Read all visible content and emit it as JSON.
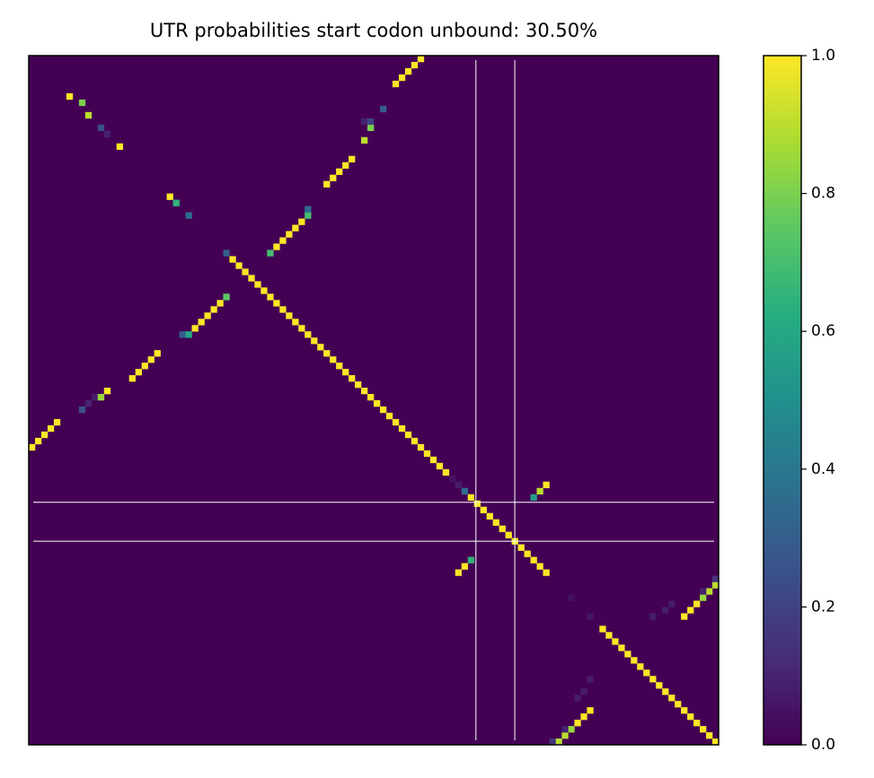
{
  "chart_data": {
    "type": "heatmap",
    "title": "UTR probabilities start codon unbound: 30.50%",
    "colormap": "viridis",
    "xlim": [
      0,
      110
    ],
    "ylim": [
      110,
      0
    ],
    "clim": [
      0,
      1
    ],
    "colorbar_ticks": [
      {
        "value": 0,
        "label": "0.0"
      },
      {
        "value": 0.2,
        "label": "0.2"
      },
      {
        "value": 0.4,
        "label": "0.4"
      },
      {
        "value": 0.6,
        "label": "0.6"
      },
      {
        "value": 0.8,
        "label": "0.8"
      },
      {
        "value": 1,
        "label": "1.0"
      }
    ],
    "marker_positions": [
      71.3,
      77.5
    ],
    "marker_color": "#ffffff",
    "cells": [
      [
        6,
        6,
        1
      ],
      [
        7,
        8,
        0.8
      ],
      [
        9,
        9,
        0.9
      ],
      [
        11,
        11,
        0.25
      ],
      [
        12,
        12,
        0.1
      ],
      [
        14,
        14,
        1
      ],
      [
        22,
        22,
        1
      ],
      [
        23,
        23,
        0.65
      ],
      [
        25,
        25,
        0.35
      ],
      [
        62,
        0,
        1
      ],
      [
        61,
        1,
        1
      ],
      [
        60,
        2,
        1
      ],
      [
        59,
        3,
        1
      ],
      [
        58,
        4,
        1
      ],
      [
        56,
        8,
        0.25
      ],
      [
        55,
        9,
        0.1
      ],
      [
        54,
        10,
        0.08
      ],
      [
        54,
        11,
        0.85
      ],
      [
        53,
        12,
        1
      ],
      [
        51,
        16,
        1
      ],
      [
        50,
        17,
        1
      ],
      [
        49,
        18,
        1
      ],
      [
        48,
        19,
        1
      ],
      [
        47,
        20,
        1
      ],
      [
        44,
        24,
        0.3
      ],
      [
        44,
        25,
        0.6
      ],
      [
        43,
        26,
        1
      ],
      [
        42,
        27,
        1
      ],
      [
        41,
        28,
        1
      ],
      [
        40,
        29,
        1
      ],
      [
        39,
        30,
        1
      ],
      [
        38,
        31,
        0.75
      ],
      [
        31,
        38,
        0.7
      ],
      [
        30,
        39,
        1
      ],
      [
        29,
        40,
        1
      ],
      [
        28,
        41,
        1
      ],
      [
        27,
        42,
        1
      ],
      [
        26,
        43,
        1
      ],
      [
        25,
        44,
        0.7
      ],
      [
        24,
        44,
        0.35
      ],
      [
        20,
        47,
        1
      ],
      [
        19,
        48,
        1
      ],
      [
        18,
        49,
        1
      ],
      [
        17,
        50,
        1
      ],
      [
        16,
        51,
        1
      ],
      [
        13,
        53,
        0.9
      ],
      [
        11,
        54,
        0.8
      ],
      [
        10,
        53,
        0.1
      ],
      [
        10,
        54,
        0.2
      ],
      [
        8,
        56,
        0.3
      ],
      [
        4,
        58,
        1
      ],
      [
        3,
        59,
        1
      ],
      [
        2,
        60,
        1
      ],
      [
        1,
        61,
        1
      ],
      [
        0,
        62,
        1
      ],
      [
        31,
        31,
        0.3
      ],
      [
        32,
        32,
        1
      ],
      [
        33,
        33,
        1
      ],
      [
        34,
        34,
        1
      ],
      [
        35,
        35,
        1
      ],
      [
        36,
        36,
        1
      ],
      [
        37,
        37,
        1
      ],
      [
        38,
        38,
        1
      ],
      [
        39,
        39,
        1
      ],
      [
        40,
        40,
        1
      ],
      [
        41,
        41,
        1
      ],
      [
        42,
        42,
        1
      ],
      [
        43,
        43,
        1
      ],
      [
        44,
        44,
        1
      ],
      [
        45,
        45,
        1
      ],
      [
        46,
        46,
        1
      ],
      [
        47,
        47,
        1
      ],
      [
        48,
        48,
        1
      ],
      [
        49,
        49,
        1
      ],
      [
        50,
        50,
        1
      ],
      [
        51,
        51,
        1
      ],
      [
        52,
        52,
        1
      ],
      [
        53,
        53,
        1
      ],
      [
        54,
        54,
        1
      ],
      [
        55,
        55,
        1
      ],
      [
        56,
        56,
        1
      ],
      [
        57,
        57,
        1
      ],
      [
        58,
        58,
        1
      ],
      [
        59,
        59,
        1
      ],
      [
        60,
        60,
        1
      ],
      [
        61,
        61,
        1
      ],
      [
        62,
        62,
        1
      ],
      [
        63,
        63,
        1
      ],
      [
        64,
        64,
        1
      ],
      [
        65,
        65,
        1
      ],
      [
        66,
        66,
        1
      ],
      [
        67,
        67,
        0.05
      ],
      [
        68,
        68,
        0.08
      ],
      [
        69,
        69,
        0.35
      ],
      [
        70,
        70,
        1
      ],
      [
        71,
        71,
        1
      ],
      [
        72,
        72,
        1
      ],
      [
        73,
        73,
        1
      ],
      [
        74,
        74,
        1
      ],
      [
        75,
        75,
        1
      ],
      [
        76,
        76,
        1
      ],
      [
        77,
        77,
        1
      ],
      [
        78,
        78,
        1
      ],
      [
        79,
        79,
        1
      ],
      [
        80,
        80,
        1
      ],
      [
        81,
        81,
        1
      ],
      [
        82,
        82,
        1
      ],
      [
        86,
        86,
        0.05
      ],
      [
        89,
        89,
        0.06
      ],
      [
        91,
        91,
        1
      ],
      [
        92,
        92,
        1
      ],
      [
        93,
        93,
        1
      ],
      [
        94,
        94,
        1
      ],
      [
        95,
        95,
        1
      ],
      [
        96,
        96,
        1
      ],
      [
        97,
        97,
        1
      ],
      [
        98,
        98,
        1
      ],
      [
        99,
        99,
        1
      ],
      [
        100,
        100,
        1
      ],
      [
        101,
        101,
        1
      ],
      [
        102,
        102,
        1
      ],
      [
        103,
        103,
        1
      ],
      [
        104,
        104,
        1
      ],
      [
        105,
        105,
        1
      ],
      [
        106,
        106,
        1
      ],
      [
        107,
        107,
        1
      ],
      [
        108,
        108,
        1
      ],
      [
        109,
        109,
        1
      ],
      [
        70,
        80,
        0.55
      ],
      [
        69,
        81,
        0.9
      ],
      [
        68,
        82,
        1
      ],
      [
        80,
        70,
        0.65
      ],
      [
        81,
        69,
        1
      ],
      [
        82,
        68,
        1
      ],
      [
        84,
        109,
        0.9
      ],
      [
        85,
        108,
        0.9
      ],
      [
        86,
        107,
        0.85
      ],
      [
        87,
        106,
        1
      ],
      [
        88,
        105,
        1
      ],
      [
        89,
        104,
        1
      ],
      [
        83,
        109,
        0.15
      ],
      [
        85,
        107,
        0.1
      ],
      [
        87,
        102,
        0.08
      ],
      [
        88,
        101,
        0.08
      ],
      [
        89,
        99,
        0.08
      ],
      [
        109,
        84,
        0.9
      ],
      [
        108,
        85,
        0.9
      ],
      [
        107,
        86,
        0.85
      ],
      [
        106,
        87,
        1
      ],
      [
        105,
        88,
        1
      ],
      [
        104,
        89,
        1
      ],
      [
        109,
        83,
        0.15
      ],
      [
        107,
        85,
        0.1
      ],
      [
        102,
        87,
        0.08
      ],
      [
        101,
        88,
        0.08
      ],
      [
        99,
        89,
        0.08
      ]
    ]
  }
}
